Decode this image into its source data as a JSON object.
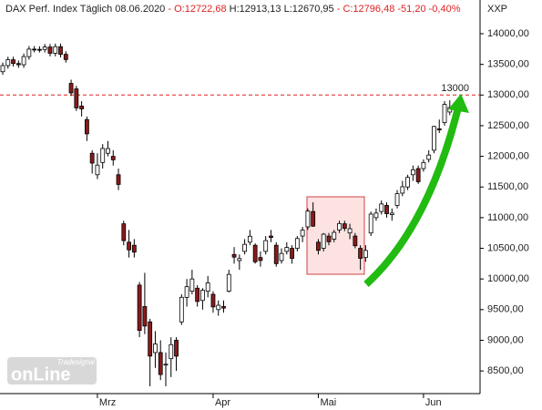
{
  "chart_data": {
    "type": "candlestick",
    "title": "DAX Perf. Index Täglich",
    "date": "08.06.2020",
    "quote_open": "- O:12722,68",
    "quote_high_low": "H:12913,13 L:12670,95",
    "quote_close": "- C:12796,48 -51,20 -0,40%",
    "axis_label": "XXP",
    "watermark_brand": "Tradesignal",
    "watermark": "onLine",
    "hline": 13000,
    "hline_color": "#dd2222",
    "up_color": "#ffffff",
    "down_color": "#8b1a1a",
    "categories": [
      null,
      null,
      null,
      null,
      null,
      null,
      null,
      null,
      null,
      null,
      null,
      null,
      null,
      null,
      null,
      null,
      null,
      null,
      "Mrz",
      null,
      null,
      null,
      null,
      null,
      null,
      null,
      null,
      null,
      null,
      null,
      null,
      null,
      null,
      null,
      null,
      null,
      null,
      null,
      null,
      null,
      "Apr",
      null,
      null,
      null,
      null,
      null,
      null,
      null,
      null,
      null,
      null,
      null,
      null,
      null,
      null,
      null,
      null,
      null,
      null,
      null,
      "Mai",
      null,
      null,
      null,
      null,
      null,
      null,
      null,
      null,
      null,
      null,
      null,
      null,
      null,
      null,
      null,
      null,
      null,
      null,
      null,
      "Jun",
      null,
      null,
      null,
      null,
      null
    ],
    "open": [
      13380,
      13480,
      13575,
      13514,
      13494,
      13627,
      13749,
      13745,
      13744,
      13783,
      13681,
      13789,
      13664,
      13190,
      13100,
      12820,
      12600,
      12050,
      11700,
      11900,
      12050,
      12000,
      11700,
      10900,
      10600,
      10550,
      9900,
      9550,
      9300,
      8800,
      8800,
      8600,
      8700,
      9000,
      9300,
      9700,
      9800,
      9850,
      9650,
      9800,
      9750,
      9500,
      9550,
      9800,
      10400,
      10300,
      10450,
      10600,
      10550,
      10350,
      10450,
      10700,
      10550,
      10300,
      10450,
      10500,
      10500,
      10700,
      10850,
      11100,
      10600,
      10500,
      10700,
      10650,
      10800,
      10900,
      10750,
      10700,
      10500,
      10350,
      10750,
      11000,
      11100,
      11200,
      11050,
      11200,
      11400,
      11500,
      11700,
      11800,
      11800,
      11950,
      12100,
      12450,
      12550,
      12722.68
    ],
    "high": [
      13530,
      13625,
      13625,
      13564,
      13677,
      13799,
      13799,
      13795,
      13833,
      13833,
      13839,
      13839,
      13714,
      13250,
      13150,
      12900,
      12650,
      12100,
      12050,
      12200,
      12250,
      12100,
      11800,
      10950,
      10800,
      10650,
      9950,
      10100,
      9350,
      9150,
      9000,
      8800,
      9050,
      9050,
      9750,
      10000,
      10150,
      9900,
      9850,
      10050,
      9800,
      9650,
      9650,
      10150,
      10520,
      10400,
      10650,
      10800,
      10580,
      10450,
      10700,
      10800,
      10600,
      10500,
      10600,
      10550,
      10700,
      10850,
      11150,
      11250,
      10650,
      10750,
      10750,
      10800,
      10950,
      10950,
      10900,
      10750,
      10550,
      10550,
      11100,
      11150,
      11280,
      11250,
      11150,
      11450,
      11600,
      11700,
      11850,
      11850,
      11950,
      12100,
      12500,
      12600,
      12900,
      12913.13
    ],
    "low": [
      13330,
      13430,
      13464,
      13444,
      13444,
      13577,
      13695,
      13694,
      13694,
      13631,
      13631,
      13614,
      13529,
      12985,
      12740,
      12650,
      12250,
      11720,
      11630,
      11800,
      12000,
      11850,
      11450,
      10550,
      10350,
      10350,
      9050,
      9100,
      8250,
      8550,
      8350,
      8250,
      8400,
      8500,
      9250,
      9550,
      9750,
      9550,
      9500,
      9700,
      9450,
      9400,
      9450,
      9780,
      10250,
      10150,
      10400,
      10550,
      10250,
      10200,
      10400,
      10600,
      10200,
      10250,
      10400,
      10250,
      10450,
      10600,
      10800,
      10850,
      10400,
      10450,
      10550,
      10600,
      10750,
      10780,
      10650,
      10500,
      10150,
      10280,
      10700,
      10950,
      11050,
      11000,
      10950,
      11150,
      11350,
      11450,
      11600,
      11550,
      11750,
      11900,
      12050,
      12380,
      12500,
      12670.95
    ],
    "close": [
      13480,
      13575,
      13514,
      13494,
      13627,
      13749,
      13745,
      13744,
      13783,
      13681,
      13789,
      13664,
      13579,
      13035,
      12790,
      12774,
      12367,
      11890,
      11857,
      12128,
      12127,
      11944,
      11542,
      10625,
      10475,
      10438,
      9161,
      9232,
      8742,
      8939,
      8441,
      8610,
      8929,
      8741,
      9701,
      9874,
      10000,
      9633,
      9815,
      9936,
      9544,
      9571,
      9525,
      10075,
      10356,
      10333,
      10565,
      10697,
      10280,
      10301,
      10626,
      10676,
      10250,
      10416,
      10514,
      10336,
      10660,
      10796,
      11107,
      10862,
      10467,
      10730,
      10607,
      10760,
      10904,
      10825,
      10820,
      10542,
      10337,
      10465,
      11058,
      11075,
      11223,
      11065,
      11074,
      11391,
      11504,
      11657,
      11781,
      11586,
      11900,
      12021,
      12487,
      12431,
      12848,
      12796.48
    ],
    "ylim": [
      8160,
      14550
    ],
    "yticks": [
      {
        "value": 8500,
        "label": "8500,00"
      },
      {
        "value": 9000,
        "label": "9000,00"
      },
      {
        "value": 9500,
        "label": "9500,00"
      },
      {
        "value": 10000,
        "label": "10000,00"
      },
      {
        "value": 10500,
        "label": "10500,00"
      },
      {
        "value": 11000,
        "label": "11000,00"
      },
      {
        "value": 11500,
        "label": "11500,00"
      },
      {
        "value": 12000,
        "label": "12000,00"
      },
      {
        "value": 12500,
        "label": "12500,00"
      },
      {
        "value": 13000,
        "label": "13000,00"
      },
      {
        "value": 13500,
        "label": "13500,00"
      },
      {
        "value": 14000,
        "label": "14000,00"
      }
    ]
  }
}
